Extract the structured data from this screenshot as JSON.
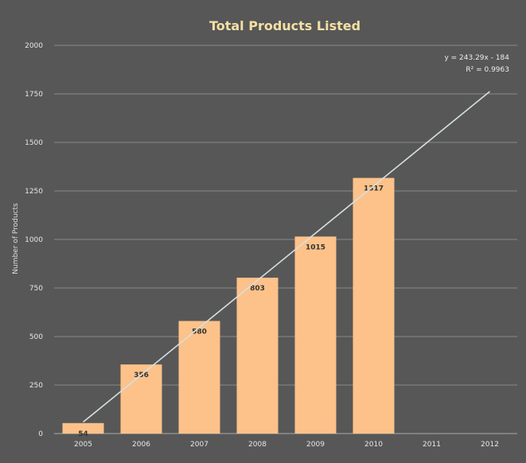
{
  "chart_data": {
    "type": "bar",
    "title": "Total Products Listed",
    "xlabel": "",
    "ylabel": "Number of Products",
    "categories": [
      "2005",
      "2006",
      "2007",
      "2008",
      "2009",
      "2010",
      "2011",
      "2012"
    ],
    "values": [
      54,
      356,
      580,
      803,
      1015,
      1317,
      null,
      null
    ],
    "data_labels": [
      "54",
      "356",
      "580",
      "803",
      "1015",
      "1317",
      "",
      ""
    ],
    "ylim": [
      0,
      2000
    ],
    "yticks": [
      "0",
      "250",
      "500",
      "750",
      "1000",
      "1250",
      "1500",
      "1750",
      "2000"
    ],
    "grid": true,
    "legend": "none",
    "trendline": {
      "type": "linear",
      "slope": 243.29,
      "intercept": -184,
      "equation": "y = 243.29x - 184",
      "r_squared": "R² = 0.9963"
    },
    "colors": {
      "background": "#575757",
      "bar": "#fcc289",
      "title": "#f6dfa4",
      "trendline": "#d5e0e3"
    }
  }
}
